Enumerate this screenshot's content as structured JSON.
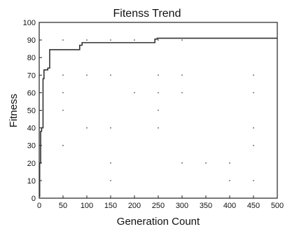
{
  "chart_data": {
    "type": "line",
    "title": "Fitenss Trend",
    "xlabel": "Generation Count",
    "ylabel": "Fitness",
    "xlim": [
      0,
      500
    ],
    "ylim": [
      0,
      100
    ],
    "xticks": [
      0,
      50,
      100,
      150,
      200,
      250,
      300,
      350,
      400,
      450,
      500
    ],
    "yticks": [
      0,
      10,
      20,
      30,
      40,
      50,
      60,
      70,
      80,
      90,
      100
    ],
    "grid": false,
    "legend": "none",
    "series": [
      {
        "step": true,
        "color": "#333333",
        "x": [
          0,
          1,
          3,
          5,
          8,
          10,
          15,
          18,
          22,
          82,
          85,
          90,
          240,
          243,
          248,
          500
        ],
        "y": [
          1,
          20,
          38,
          40,
          68,
          73,
          73,
          74,
          84.5,
          84.5,
          87,
          88.5,
          88.5,
          90.5,
          91,
          91
        ]
      }
    ],
    "annotations": {
      "stray_points": [
        [
          50,
          90
        ],
        [
          100,
          90
        ],
        [
          150,
          90
        ],
        [
          200,
          90
        ],
        [
          250,
          90
        ],
        [
          300,
          90
        ],
        [
          50,
          70
        ],
        [
          100,
          70
        ],
        [
          150,
          70
        ],
        [
          250,
          70
        ],
        [
          300,
          70
        ],
        [
          450,
          70
        ],
        [
          50,
          60
        ],
        [
          200,
          60
        ],
        [
          250,
          60
        ],
        [
          300,
          60
        ],
        [
          450,
          60
        ],
        [
          50,
          50
        ],
        [
          250,
          50
        ],
        [
          100,
          40
        ],
        [
          150,
          40
        ],
        [
          250,
          40
        ],
        [
          450,
          40
        ],
        [
          50,
          30
        ],
        [
          450,
          30
        ],
        [
          150,
          20
        ],
        [
          300,
          20
        ],
        [
          350,
          20
        ],
        [
          400,
          20
        ],
        [
          150,
          10
        ],
        [
          400,
          10
        ],
        [
          450,
          10
        ]
      ]
    }
  }
}
